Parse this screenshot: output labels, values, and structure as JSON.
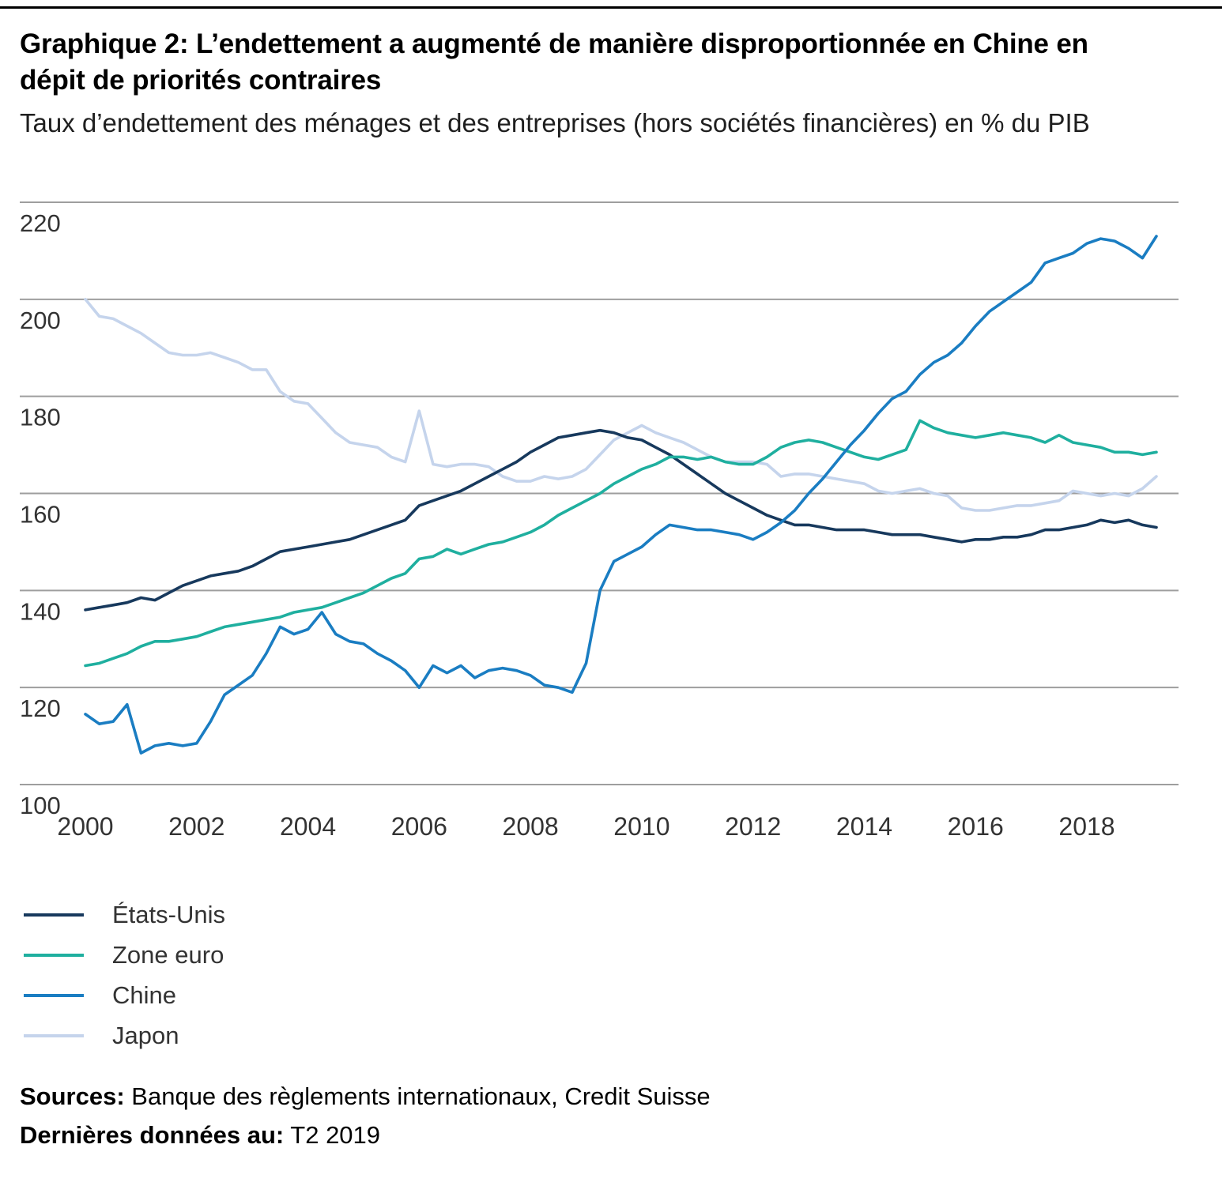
{
  "header": {
    "title": "Graphique 2: L’endettement a augmenté de manière disproportionnée en Chine en dépit de priorités contraires",
    "subtitle": "Taux d’endettement des ménages et des entreprises (hors sociétés financières) en % du PIB"
  },
  "chart_data": {
    "type": "line",
    "x_start": 2000,
    "x_step": 0.25,
    "x_end": 2019.25,
    "x_ticks": [
      2000,
      2002,
      2004,
      2006,
      2008,
      2010,
      2012,
      2014,
      2016,
      2018
    ],
    "y_ticks": [
      220,
      200,
      180,
      160,
      140,
      120,
      100
    ],
    "ylim": [
      100,
      220
    ],
    "grid": true,
    "legend_position": "bottom-left",
    "colors": {
      "gridline": "#9E9E9E",
      "axis_text": "#333333"
    },
    "series": [
      {
        "name": "États-Unis",
        "color": "#17395D",
        "values": [
          136,
          136.5,
          137,
          137.5,
          138.5,
          138,
          139.5,
          141,
          142,
          143,
          143.5,
          144,
          145,
          146.5,
          148,
          148.5,
          149,
          149.5,
          150,
          150.5,
          151.5,
          152.5,
          153.5,
          154.5,
          157.5,
          158.5,
          159.5,
          160.5,
          162,
          163.5,
          165,
          166.5,
          168.5,
          170,
          171.5,
          172,
          172.5,
          173,
          172.5,
          171.5,
          171,
          169.5,
          168,
          166,
          164,
          162,
          160,
          158.5,
          157,
          155.5,
          154.5,
          153.5,
          153.5,
          153,
          152.5,
          152.5,
          152.5,
          152,
          151.5,
          151.5,
          151.5,
          151,
          150.5,
          150,
          150.5,
          150.5,
          151,
          151,
          151.5,
          152.5,
          152.5,
          153,
          153.5,
          154.5,
          154,
          154.5,
          153.5,
          153
        ]
      },
      {
        "name": "Zone euro",
        "color": "#1FAF9F",
        "values": [
          124.5,
          125,
          126,
          127,
          128.5,
          129.5,
          129.5,
          130,
          130.5,
          131.5,
          132.5,
          133,
          133.5,
          134,
          134.5,
          135.5,
          136,
          136.5,
          137.5,
          138.5,
          139.5,
          141,
          142.5,
          143.5,
          146.5,
          147,
          148.5,
          147.5,
          148.5,
          149.5,
          150,
          151,
          152,
          153.5,
          155.5,
          157,
          158.5,
          160,
          162,
          163.5,
          165,
          166,
          167.5,
          167.5,
          167,
          167.5,
          166.5,
          166,
          166,
          167.5,
          169.5,
          170.5,
          171,
          170.5,
          169.5,
          168.5,
          167.5,
          167,
          168,
          169,
          175,
          173.5,
          172.5,
          172,
          171.5,
          172,
          172.5,
          172,
          171.5,
          170.5,
          172,
          170.5,
          170,
          169.5,
          168.5,
          168.5,
          168,
          168.5
        ]
      },
      {
        "name": "Chine",
        "color": "#1A7DC2",
        "values": [
          114.5,
          112.5,
          113,
          116.5,
          106.5,
          108,
          108.5,
          108,
          108.5,
          113,
          118.5,
          120.5,
          122.5,
          127,
          132.5,
          131,
          132,
          135.5,
          131,
          129.5,
          129,
          127,
          125.5,
          123.5,
          120,
          124.5,
          123,
          124.5,
          122,
          123.5,
          124,
          123.5,
          122.5,
          120.5,
          120,
          119,
          125,
          140,
          146,
          147.5,
          149,
          151.5,
          153.5,
          153,
          152.5,
          152.5,
          152,
          151.5,
          150.5,
          152,
          154,
          156.5,
          160,
          163,
          166.5,
          170,
          173,
          176.5,
          179.5,
          181,
          184.5,
          187,
          188.5,
          191,
          194.5,
          197.5,
          199.5,
          201.5,
          203.5,
          207.5,
          208.5,
          209.5,
          211.5,
          212.5,
          212,
          210.5,
          208.5,
          213
        ]
      },
      {
        "name": "Japon",
        "color": "#C5D4EC",
        "values": [
          200,
          196.5,
          196,
          194.5,
          193,
          191,
          189,
          188.5,
          188.5,
          189,
          188,
          187,
          185.5,
          185.5,
          181,
          179,
          178.5,
          175.5,
          172.5,
          170.5,
          170,
          169.5,
          167.5,
          166.5,
          177,
          166,
          165.5,
          166,
          166,
          165.5,
          163.5,
          162.5,
          162.5,
          163.5,
          163,
          163.5,
          165,
          168,
          171,
          172.5,
          174,
          172.5,
          171.5,
          170.5,
          169,
          167.5,
          166.5,
          166.5,
          166.5,
          166,
          163.5,
          164,
          164,
          163.5,
          163,
          162.5,
          162,
          160.5,
          160,
          160.5,
          161,
          160,
          159.5,
          157,
          156.5,
          156.5,
          157,
          157.5,
          157.5,
          158,
          158.5,
          160.5,
          160,
          159.5,
          160,
          159.5,
          161,
          163.5
        ]
      }
    ]
  },
  "footer": {
    "sources_label": "Sources:",
    "sources_text": "Banque des règlements internationaux, Credit Suisse",
    "last_data_label": "Dernières données au:",
    "last_data_value": "T2 2019"
  }
}
